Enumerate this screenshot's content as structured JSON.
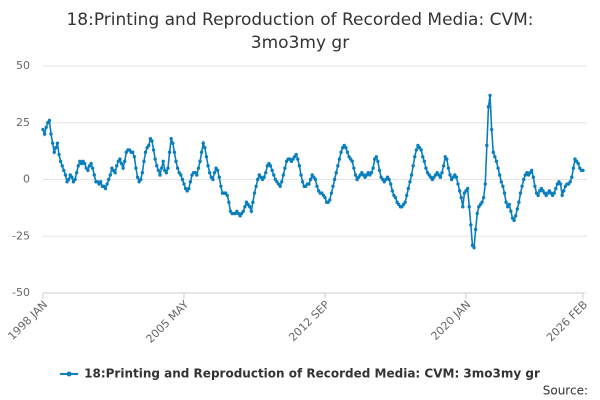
{
  "chart_data": {
    "type": "line",
    "title": "18:Printing and Reproduction of Recorded Media: CVM: 3mo3my gr",
    "source": "Source:",
    "categories": [
      "1998 JAN",
      null,
      null,
      null,
      null,
      null,
      null,
      null,
      null,
      null,
      null,
      null,
      null,
      null,
      null,
      null,
      null,
      null,
      null,
      null,
      null,
      null,
      null,
      null,
      null,
      null,
      null,
      null,
      null,
      null,
      null,
      null,
      null,
      null,
      null,
      null,
      null,
      null,
      null,
      null,
      null,
      null,
      null,
      null,
      null,
      null,
      null,
      null,
      null,
      null,
      null,
      null,
      null,
      null,
      null,
      null,
      null,
      null,
      null,
      null,
      null,
      null,
      null,
      null,
      null,
      null,
      null,
      null,
      null,
      null,
      null,
      null,
      null,
      null,
      null,
      null,
      null,
      null,
      null,
      null,
      null,
      null,
      null,
      null,
      null,
      null,
      null,
      null,
      "2005 MAY",
      null,
      null,
      null,
      null,
      null,
      null,
      null,
      null,
      null,
      null,
      null,
      null,
      null,
      null,
      null,
      null,
      null,
      null,
      null,
      null,
      null,
      null,
      null,
      null,
      null,
      null,
      null,
      null,
      null,
      null,
      null,
      null,
      null,
      null,
      null,
      null,
      null,
      null,
      null,
      null,
      null,
      null,
      null,
      null,
      null,
      null,
      null,
      null,
      null,
      null,
      null,
      null,
      null,
      null,
      null,
      null,
      null,
      null,
      null,
      null,
      null,
      null,
      null,
      null,
      null,
      null,
      null,
      null,
      null,
      null,
      null,
      null,
      null,
      null,
      null,
      null,
      null,
      null,
      null,
      null,
      null,
      null,
      null,
      null,
      null,
      null,
      null,
      "2012 SEP",
      null,
      null,
      null,
      null,
      null,
      null,
      null,
      null,
      null,
      null,
      null,
      null,
      null,
      null,
      null,
      null,
      null,
      null,
      null,
      null,
      null,
      null,
      null,
      null,
      null,
      null,
      null,
      null,
      null,
      null,
      null,
      null,
      null,
      null,
      null,
      null,
      null,
      null,
      null,
      null,
      null,
      null,
      null,
      null,
      null,
      null,
      null,
      null,
      null,
      null,
      null,
      null,
      null,
      null,
      null,
      null,
      null,
      null,
      null,
      null,
      null,
      null,
      null,
      null,
      null,
      null,
      null,
      null,
      null,
      null,
      null,
      null,
      null,
      null,
      null,
      null,
      null,
      null,
      null,
      null,
      null,
      null,
      null,
      null,
      null,
      null,
      null,
      "2020 JAN",
      null,
      null,
      null,
      null,
      null,
      null,
      null,
      null,
      null,
      null,
      null,
      null,
      null,
      null,
      null,
      null,
      null,
      null,
      null,
      null,
      null,
      null,
      null,
      null,
      null,
      null,
      null,
      null,
      null,
      null,
      null,
      null,
      null,
      null,
      null,
      null,
      null,
      null,
      null,
      null,
      null,
      null,
      null,
      null,
      null,
      null,
      null,
      null,
      null,
      null,
      null,
      null,
      null,
      null,
      null,
      null,
      null,
      null,
      null,
      null,
      null,
      null,
      null,
      null,
      null,
      null,
      null,
      null,
      null,
      null,
      null,
      null,
      "2026 FEB"
    ],
    "series": [
      {
        "name": "18:Printing and Reproduction of Recorded Media: CVM: 3mo3my gr",
        "color": "#0b7fbd",
        "values": [
          22,
          20,
          23,
          25,
          26,
          20,
          16,
          12,
          14,
          16,
          11,
          8,
          6,
          4,
          2,
          -1,
          0,
          2,
          1,
          -1,
          0,
          3,
          6,
          8,
          7,
          8,
          7,
          5,
          4,
          6,
          7,
          5,
          2,
          -1,
          -1,
          -2,
          -1,
          -3,
          -3,
          -4,
          -2,
          0,
          2,
          5,
          4,
          3,
          6,
          8,
          9,
          7,
          5,
          8,
          12,
          13,
          13,
          12,
          12,
          10,
          5,
          1,
          -1,
          0,
          3,
          8,
          12,
          14,
          15,
          18,
          17,
          13,
          9,
          6,
          4,
          2,
          5,
          8,
          4,
          3,
          5,
          12,
          18,
          16,
          12,
          8,
          5,
          3,
          2,
          0,
          -2,
          -4,
          -5,
          -4,
          -1,
          2,
          3,
          3,
          2,
          5,
          8,
          12,
          16,
          14,
          10,
          6,
          3,
          1,
          0,
          3,
          5,
          4,
          1,
          -3,
          -6,
          -6,
          -6,
          -7,
          -10,
          -14,
          -15,
          -15,
          -15,
          -14,
          -15,
          -16,
          -15,
          -14,
          -12,
          -10,
          -11,
          -12,
          -14,
          -10,
          -6,
          -3,
          0,
          2,
          1,
          0,
          1,
          3,
          6,
          7,
          6,
          4,
          2,
          0,
          -1,
          -2,
          -3,
          -1,
          2,
          5,
          8,
          9,
          9,
          8,
          9,
          10,
          11,
          9,
          6,
          2,
          -1,
          -3,
          -3,
          -2,
          -2,
          0,
          2,
          1,
          0,
          -3,
          -5,
          -6,
          -6,
          -7,
          -8,
          -10,
          -10,
          -9,
          -6,
          -3,
          0,
          3,
          6,
          9,
          12,
          14,
          15,
          14,
          12,
          10,
          9,
          8,
          5,
          2,
          0,
          1,
          2,
          3,
          2,
          1,
          2,
          3,
          2,
          3,
          5,
          9,
          10,
          8,
          4,
          1,
          0,
          -1,
          0,
          1,
          0,
          -2,
          -5,
          -7,
          -8,
          -10,
          -11,
          -12,
          -12,
          -11,
          -10,
          -7,
          -4,
          -1,
          2,
          6,
          10,
          13,
          15,
          14,
          13,
          10,
          8,
          5,
          3,
          2,
          1,
          0,
          1,
          2,
          3,
          2,
          1,
          3,
          6,
          10,
          9,
          5,
          2,
          0,
          1,
          2,
          1,
          -2,
          -5,
          -8,
          -12,
          -6,
          -5,
          -4,
          -12,
          -20,
          -29,
          -30,
          -22,
          -15,
          -12,
          -11,
          -10,
          -8,
          -2,
          15,
          32,
          37,
          22,
          12,
          10,
          8,
          5,
          2,
          -1,
          -3,
          -6,
          -10,
          -12,
          -11,
          -14,
          -17,
          -18,
          -16,
          -13,
          -10,
          -6,
          -3,
          0,
          2,
          3,
          2,
          3,
          4,
          1,
          -3,
          -6,
          -7,
          -5,
          -4,
          -5,
          -6,
          -7,
          -6,
          -5,
          -6,
          -7,
          -6,
          -4,
          -2,
          -1,
          -2,
          -7,
          -5,
          -3,
          -2,
          -2,
          -1,
          1,
          5,
          9,
          8,
          7,
          5,
          4,
          4
        ]
      }
    ],
    "ylim": [
      -50,
      50
    ],
    "yticks": [
      -50,
      -25,
      0,
      25,
      50
    ],
    "grid": true,
    "legend": "bottom"
  }
}
